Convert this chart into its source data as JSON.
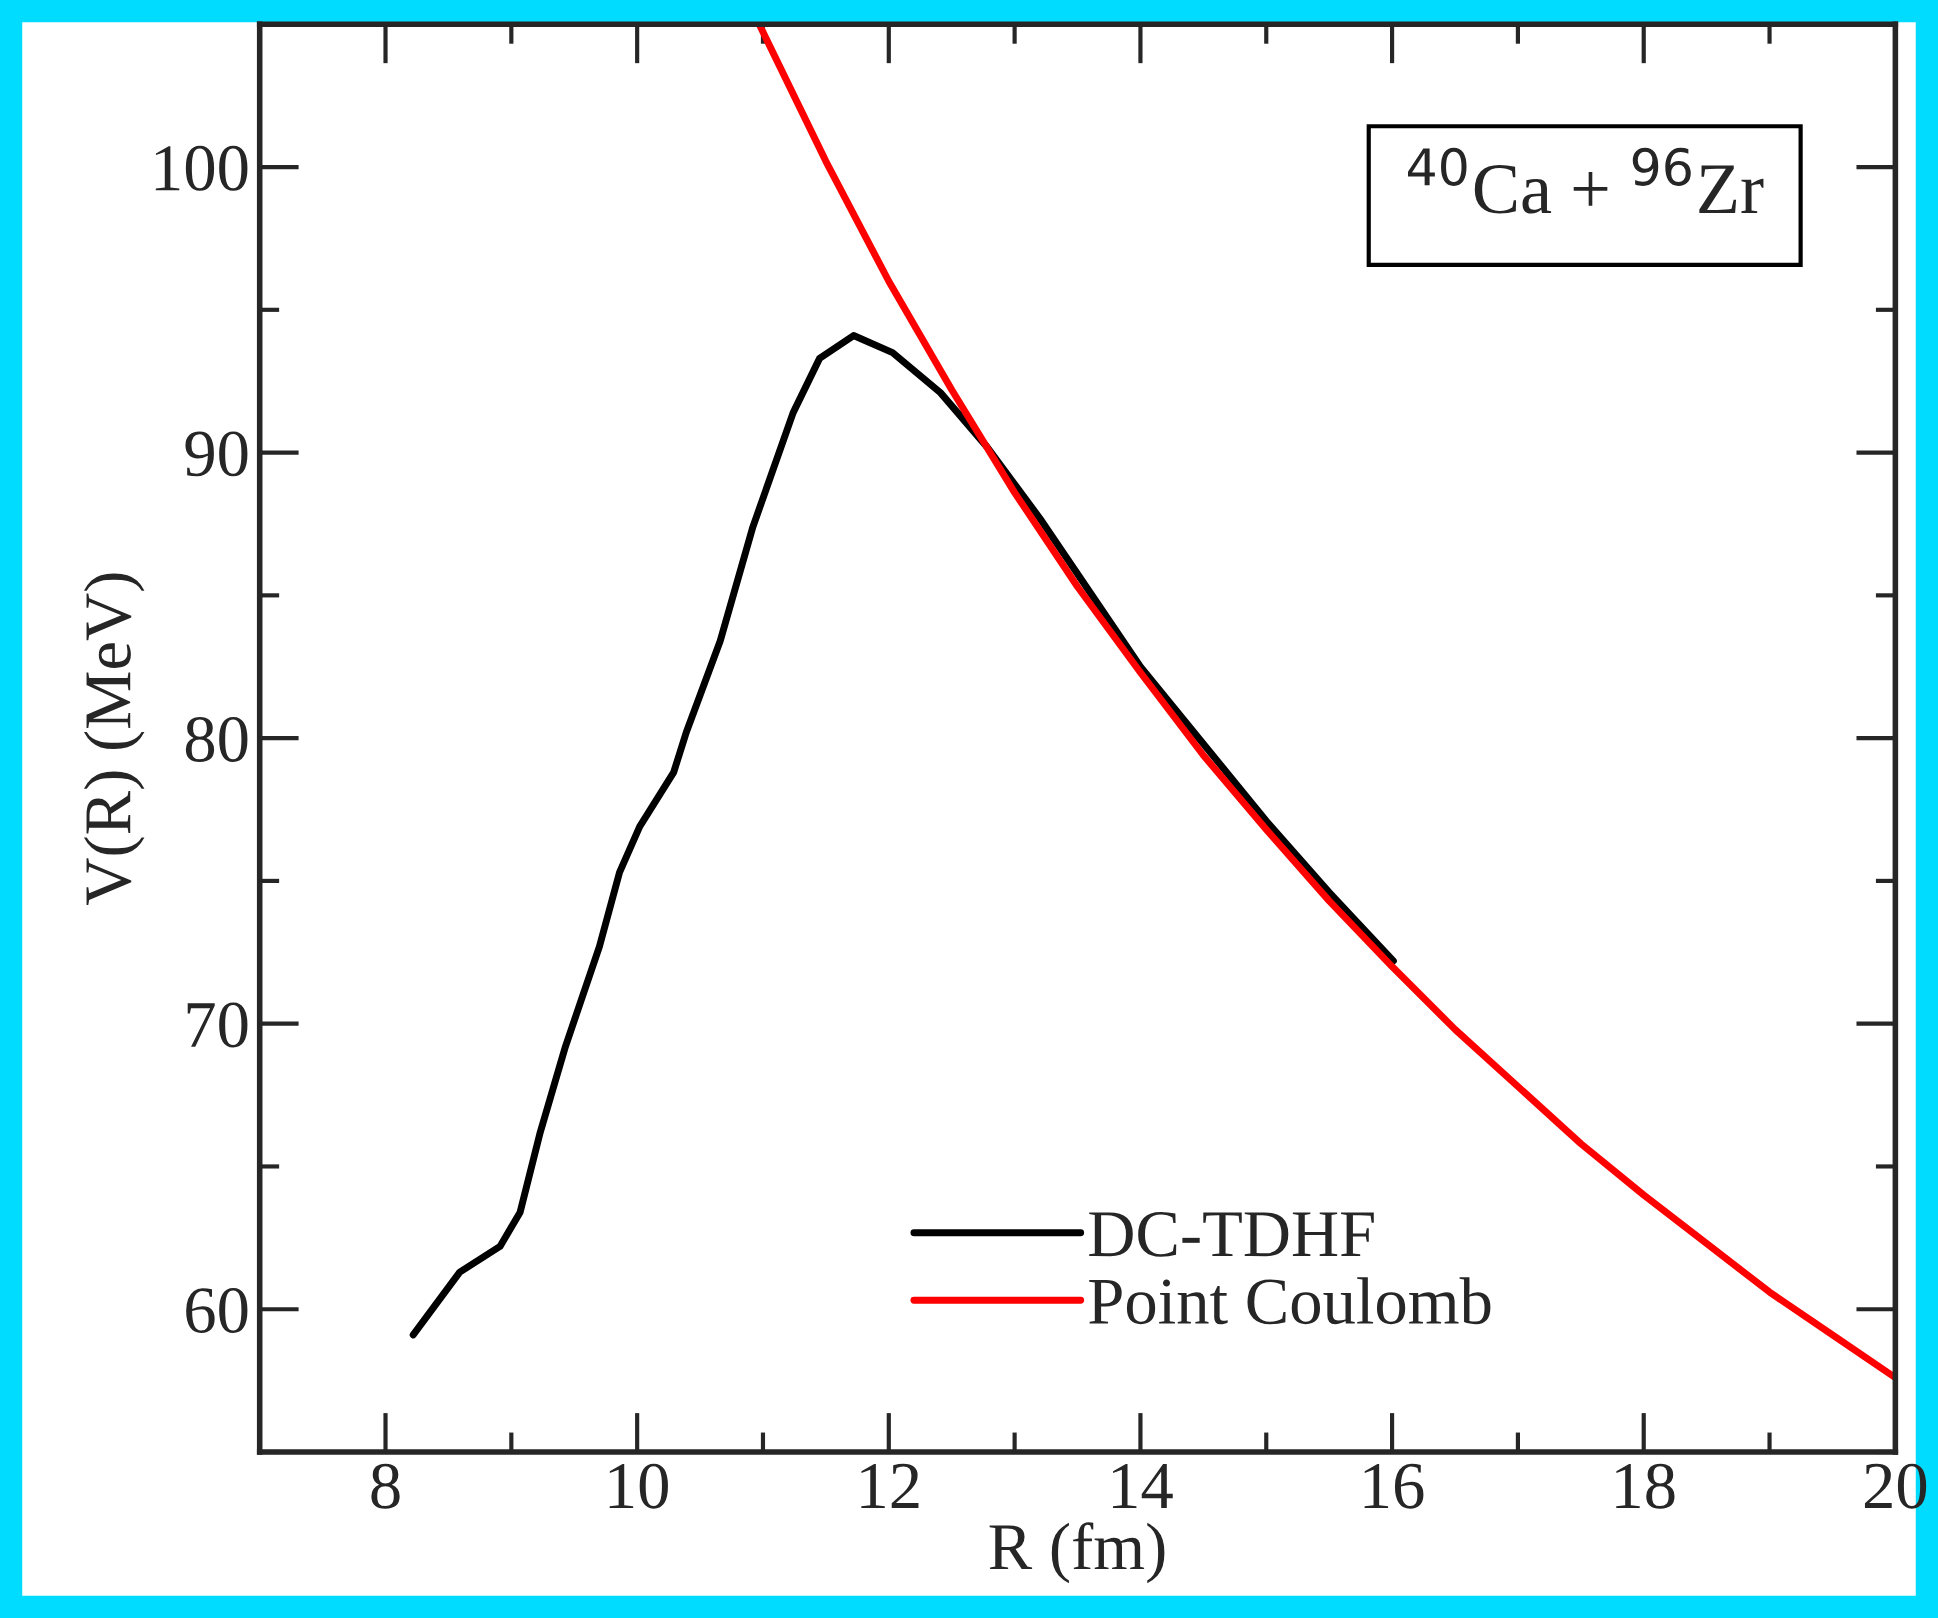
{
  "chart_data": {
    "type": "line",
    "xlabel": "R (fm)",
    "ylabel": "V(R) (MeV)",
    "xlim": [
      7,
      20
    ],
    "ylim": [
      55,
      105
    ],
    "xticks": [
      8,
      10,
      12,
      14,
      16,
      18,
      20
    ],
    "yticks": [
      60,
      70,
      80,
      90,
      100
    ],
    "grid": false,
    "legend": "bottom right",
    "marker": "none",
    "line_style": "solid",
    "annotations": [
      "$^{40}$Ca + $^{96}$Zr"
    ],
    "series": [
      {
        "name": "DC-TDHF",
        "color": "#000000",
        "x": [
          8.22,
          8.59,
          8.91,
          9.07,
          9.23,
          9.43,
          9.7,
          9.86,
          10.02,
          10.29,
          10.39,
          10.66,
          10.92,
          11.24,
          11.45,
          11.72,
          12.03,
          12.41,
          12.78,
          13.2,
          14.0,
          15.0,
          15.5,
          16.01
        ],
        "values": [
          59.1,
          61.3,
          62.2,
          63.4,
          66.2,
          69.2,
          72.7,
          75.3,
          76.9,
          78.8,
          80.2,
          83.4,
          87.4,
          91.4,
          93.3,
          94.1,
          93.5,
          92.1,
          90.2,
          87.7,
          82.5,
          77.1,
          74.6,
          72.2
        ]
      },
      {
        "name": "Point Coulomb",
        "color": "#ff0000",
        "x": [
          10.97,
          11.5,
          12,
          12.5,
          13,
          13.5,
          14,
          14.5,
          15,
          15.5,
          16,
          16.5,
          17,
          17.5,
          18,
          18.5,
          19,
          19.5,
          20
        ],
        "values": [
          105.0,
          100.2,
          96.0,
          92.2,
          88.6,
          85.3,
          82.3,
          79.4,
          76.8,
          74.3,
          72.0,
          69.8,
          67.8,
          65.8,
          64.0,
          62.3,
          60.6,
          59.1,
          57.6
        ]
      }
    ]
  }
}
